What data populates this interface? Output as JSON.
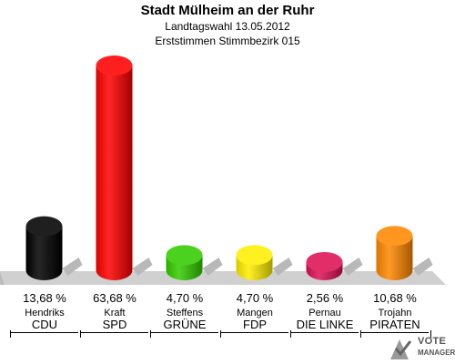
{
  "title": "Stadt Mülheim an der Ruhr",
  "subtitle1": "Landtagswahl 13.05.2012",
  "subtitle2": "Erststimmen Stimmbezirk 015",
  "logo": {
    "line1": "VOTE",
    "line2": "MANAGER"
  },
  "chart_data": {
    "type": "bar",
    "title": "Stadt Mülheim an der Ruhr",
    "categories": [
      "CDU",
      "SPD",
      "GRÜNE",
      "FDP",
      "DIE LINKE",
      "PIRATEN"
    ],
    "candidates": [
      "Hendriks",
      "Kraft",
      "Steffens",
      "Mangen",
      "Pernau",
      "Trojahn"
    ],
    "values": [
      13.68,
      63.68,
      4.7,
      4.7,
      2.56,
      10.68
    ],
    "value_labels": [
      "13,68 %",
      "63,68 %",
      "4,70 %",
      "4,70 %",
      "2,56 %",
      "10,68 %"
    ],
    "colors": [
      "#000000",
      "#ff0000",
      "#33cc00",
      "#ffee00",
      "#dd1155",
      "#ff8800"
    ],
    "ylim": [
      0,
      63.68
    ],
    "grid": false,
    "legend": "none"
  }
}
